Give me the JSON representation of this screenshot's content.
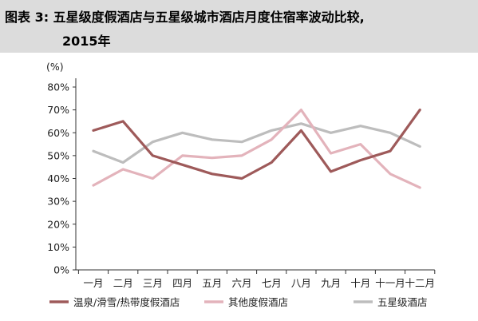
{
  "title": {
    "line1": "图表 3: 五星级度假酒店与五星级城市酒店月度住宿率波动比较,",
    "line2": "2015年"
  },
  "chart_data": {
    "type": "line",
    "ylabel": "(%)",
    "ylim": [
      0,
      80
    ],
    "y_ticks": [
      "80%",
      "70%",
      "60%",
      "50%",
      "40%",
      "30%",
      "20%",
      "10%",
      "0%"
    ],
    "categories": [
      "一月",
      "二月",
      "三月",
      "四月",
      "五月",
      "六月",
      "七月",
      "八月",
      "九月",
      "十月",
      "十一月",
      "十二月"
    ],
    "series": [
      {
        "name": "温泉/滑雪/热带度假酒店",
        "color": "#9e5a5a",
        "values": [
          61,
          65,
          50,
          46,
          42,
          40,
          47,
          61,
          43,
          48,
          52,
          70
        ]
      },
      {
        "name": "其他度假酒店",
        "color": "#e3b3bb",
        "values": [
          37,
          44,
          40,
          50,
          49,
          50,
          57,
          70,
          51,
          55,
          42,
          36
        ]
      },
      {
        "name": "五星级酒店",
        "color": "#bdbdbd",
        "values": [
          52,
          47,
          56,
          60,
          57,
          56,
          61,
          64,
          60,
          63,
          60,
          54
        ]
      }
    ]
  }
}
